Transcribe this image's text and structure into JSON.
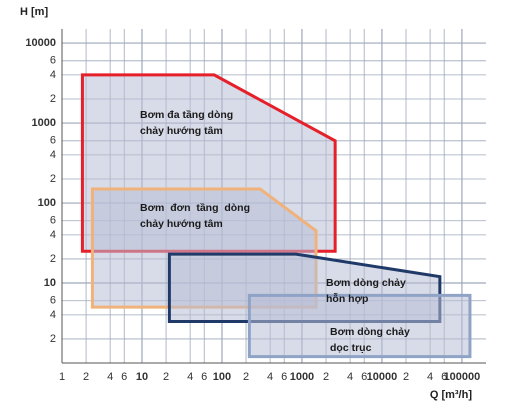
{
  "chart_data": {
    "type": "area",
    "x_label": "Q [m³/h]",
    "y_label": "H [m]",
    "log_x": true,
    "log_y": true,
    "grid": true,
    "xlim": [
      1,
      200000
    ],
    "ylim": [
      1,
      15000
    ],
    "xticks": [
      1,
      2,
      4,
      6,
      10,
      {
        "value": 20,
        "label": "2"
      },
      {
        "value": 40,
        "label": "4"
      },
      {
        "value": 60,
        "label": "6"
      },
      100,
      {
        "value": 200,
        "label": "2"
      },
      {
        "value": 400,
        "label": "4"
      },
      {
        "value": 600,
        "label": "6"
      },
      1000,
      {
        "value": 2000,
        "label": "2"
      },
      {
        "value": 4000,
        "label": "4"
      },
      {
        "value": 6000,
        "label": "6"
      },
      10000,
      {
        "value": 20000,
        "label": "2"
      },
      {
        "value": 40000,
        "label": "4"
      },
      {
        "value": 60000,
        "label": "6"
      },
      100000
    ],
    "yticks": [
      2,
      4,
      6,
      10,
      {
        "value": 20,
        "label": "2"
      },
      {
        "value": 40,
        "label": "4"
      },
      {
        "value": 60,
        "label": "6"
      },
      100,
      {
        "value": 200,
        "label": "2"
      },
      {
        "value": 400,
        "label": "4"
      },
      {
        "value": 600,
        "label": "6"
      },
      1000,
      {
        "value": 2000,
        "label": "2"
      },
      {
        "value": 4000,
        "label": "4"
      },
      {
        "value": 6000,
        "label": "6"
      },
      10000
    ],
    "fill": "#b8bdd6",
    "series": [
      {
        "name": [
          "Bơm đa tầng dòng",
          "chảy hướng tâm"
        ],
        "color": "#e5202a",
        "x": [
          1.8,
          80,
          2600,
          2600,
          1.8
        ],
        "values": [
          4000,
          4000,
          600,
          25,
          25
        ]
      },
      {
        "name": [
          "Bơm  đơn  tầng  dòng",
          "chảy hướng tâm"
        ],
        "color": "#f0b27a",
        "x": [
          2.4,
          300,
          1500,
          1500,
          2.4
        ],
        "values": [
          150,
          150,
          45,
          5,
          5
        ]
      },
      {
        "name": [
          "Bơm dòng chảy",
          "hỗn hợp"
        ],
        "color": "#1f3a68",
        "x": [
          22,
          840,
          53000,
          53000,
          22
        ],
        "values": [
          23,
          23,
          12,
          3.3,
          3.3
        ]
      },
      {
        "name": [
          "Bơm dòng chảy",
          "dọc trục"
        ],
        "color": "#8fa3c6",
        "x": [
          220,
          126000,
          126000,
          220
        ],
        "values": [
          7,
          7,
          1.2,
          1.2
        ]
      }
    ]
  }
}
